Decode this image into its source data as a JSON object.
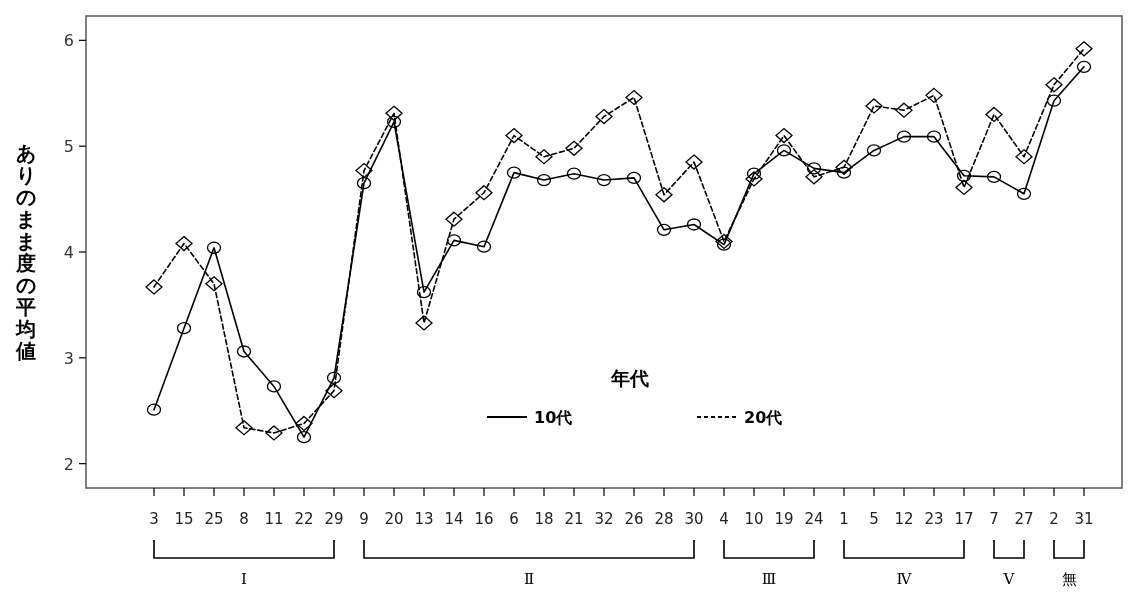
{
  "chart_data": {
    "type": "line",
    "ylabel": "ありのまま度の平均値",
    "legend_title": "年代",
    "legend": "bottom",
    "categories": [
      "3",
      "15",
      "25",
      "8",
      "11",
      "22",
      "29",
      "9",
      "20",
      "13",
      "14",
      "16",
      "6",
      "18",
      "21",
      "32",
      "26",
      "28",
      "30",
      "4",
      "10",
      "19",
      "24",
      "1",
      "5",
      "12",
      "23",
      "17",
      "7",
      "27",
      "2",
      "31"
    ],
    "series": [
      {
        "name": "10代",
        "color": "#000000",
        "marker": "circle",
        "line_style": "solid",
        "values": [
          2.51,
          3.28,
          4.04,
          3.06,
          2.73,
          2.25,
          2.81,
          4.65,
          5.23,
          3.62,
          4.11,
          4.05,
          4.75,
          4.68,
          4.74,
          4.68,
          4.7,
          4.21,
          4.26,
          4.07,
          4.74,
          4.96,
          4.79,
          4.75,
          4.96,
          5.09,
          5.09,
          4.72,
          4.71,
          4.55,
          5.43,
          5.75
        ]
      },
      {
        "name": "20代",
        "color": "#000000",
        "marker": "diamond",
        "line_style": "dashed",
        "values": [
          3.67,
          4.08,
          3.7,
          2.34,
          2.29,
          2.38,
          2.69,
          4.77,
          5.31,
          3.33,
          4.31,
          4.56,
          5.1,
          4.9,
          4.98,
          5.28,
          5.46,
          4.54,
          4.85,
          4.1,
          4.69,
          5.1,
          4.71,
          4.8,
          5.38,
          5.34,
          5.48,
          4.61,
          5.3,
          4.9,
          5.58,
          5.92
        ]
      }
    ],
    "ylim": [
      1.77,
      6.23
    ],
    "yticks": [
      2,
      3,
      4,
      5,
      6
    ],
    "annotations": [
      "Ⅰ",
      "Ⅱ",
      "Ⅲ",
      "Ⅳ",
      "Ⅴ",
      "無"
    ]
  }
}
